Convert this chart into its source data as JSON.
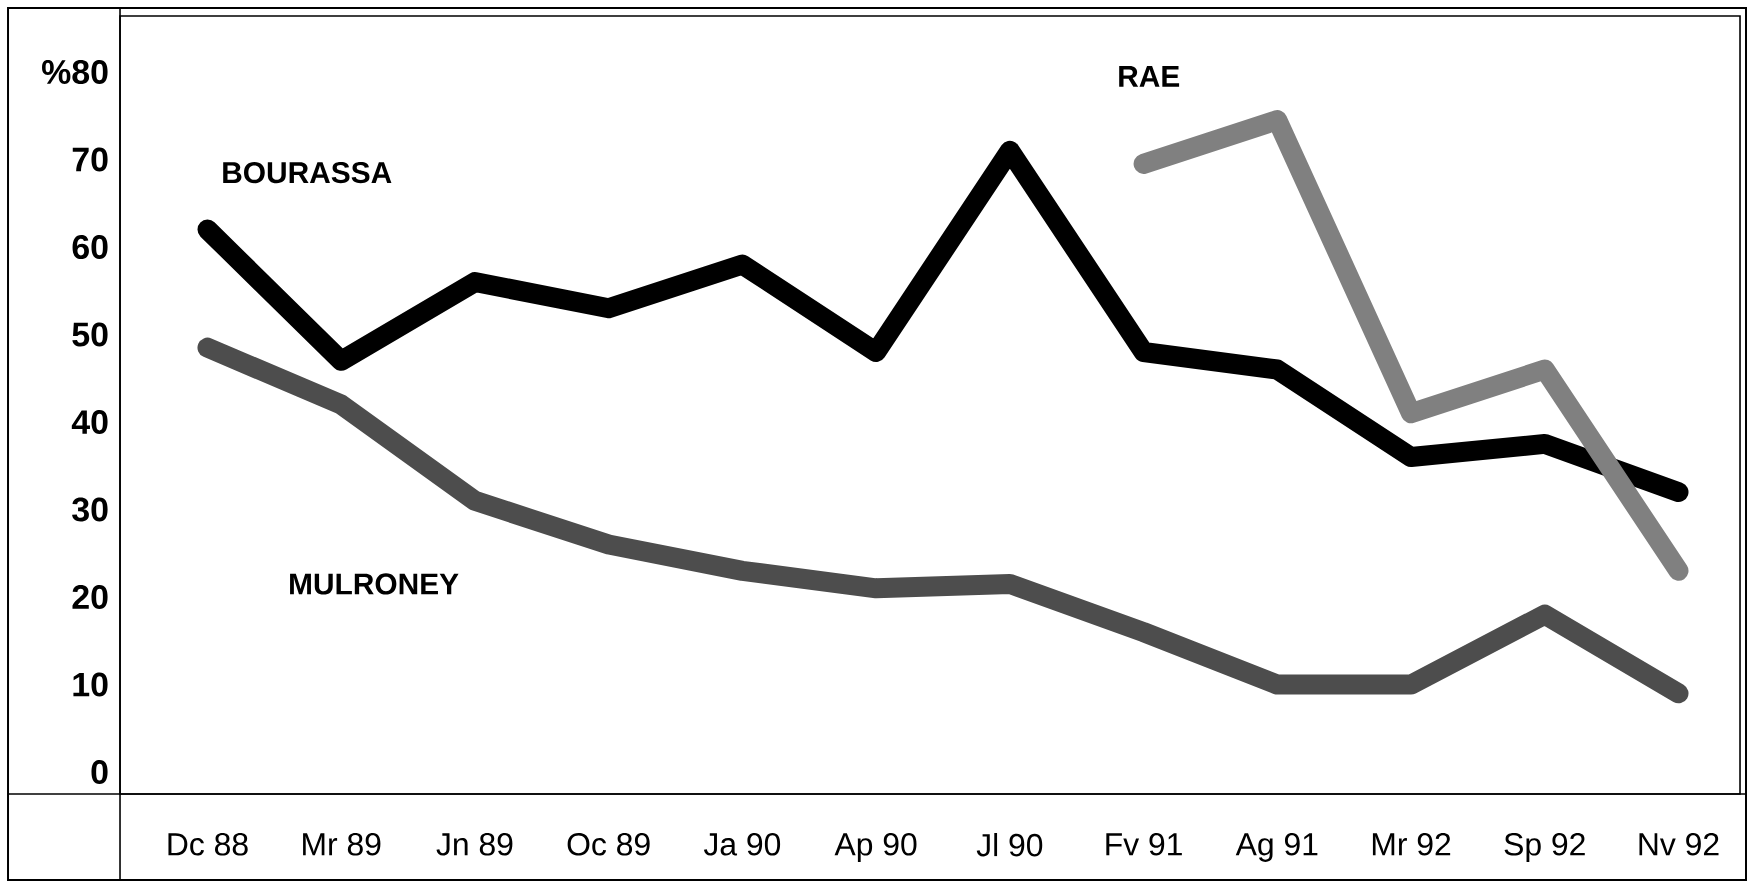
{
  "chart_data": {
    "type": "line",
    "categories": [
      "Dc 88",
      "Mr 89",
      "Jn 89",
      "Oc 89",
      "Ja 90",
      "Ap 90",
      "Jl 90",
      "Fv 91",
      "Ag 91",
      "Mr 92",
      "Sp 92",
      "Nv 92"
    ],
    "series": [
      {
        "name": "BOURASSA",
        "color": "#000000",
        "values": [
          62,
          47,
          56,
          53,
          58,
          48,
          71,
          48,
          46,
          36,
          37.5,
          32
        ]
      },
      {
        "name": "MULRONEY",
        "color": "#4d4d4d",
        "values": [
          48.5,
          42,
          31,
          26,
          23,
          21,
          21.5,
          16,
          10,
          10,
          18,
          9
        ]
      },
      {
        "name": "RAE",
        "color": "#808080",
        "values": [
          null,
          null,
          null,
          null,
          null,
          null,
          null,
          69.5,
          74.5,
          41,
          46,
          23
        ]
      }
    ],
    "ylim": [
      -2.5,
      86.4
    ],
    "yticks": [
      0,
      10,
      20,
      30,
      40,
      50,
      60,
      70,
      {
        "value": 80,
        "label": "%80"
      }
    ],
    "grid": false,
    "marker": "none",
    "line_style": "solid"
  }
}
